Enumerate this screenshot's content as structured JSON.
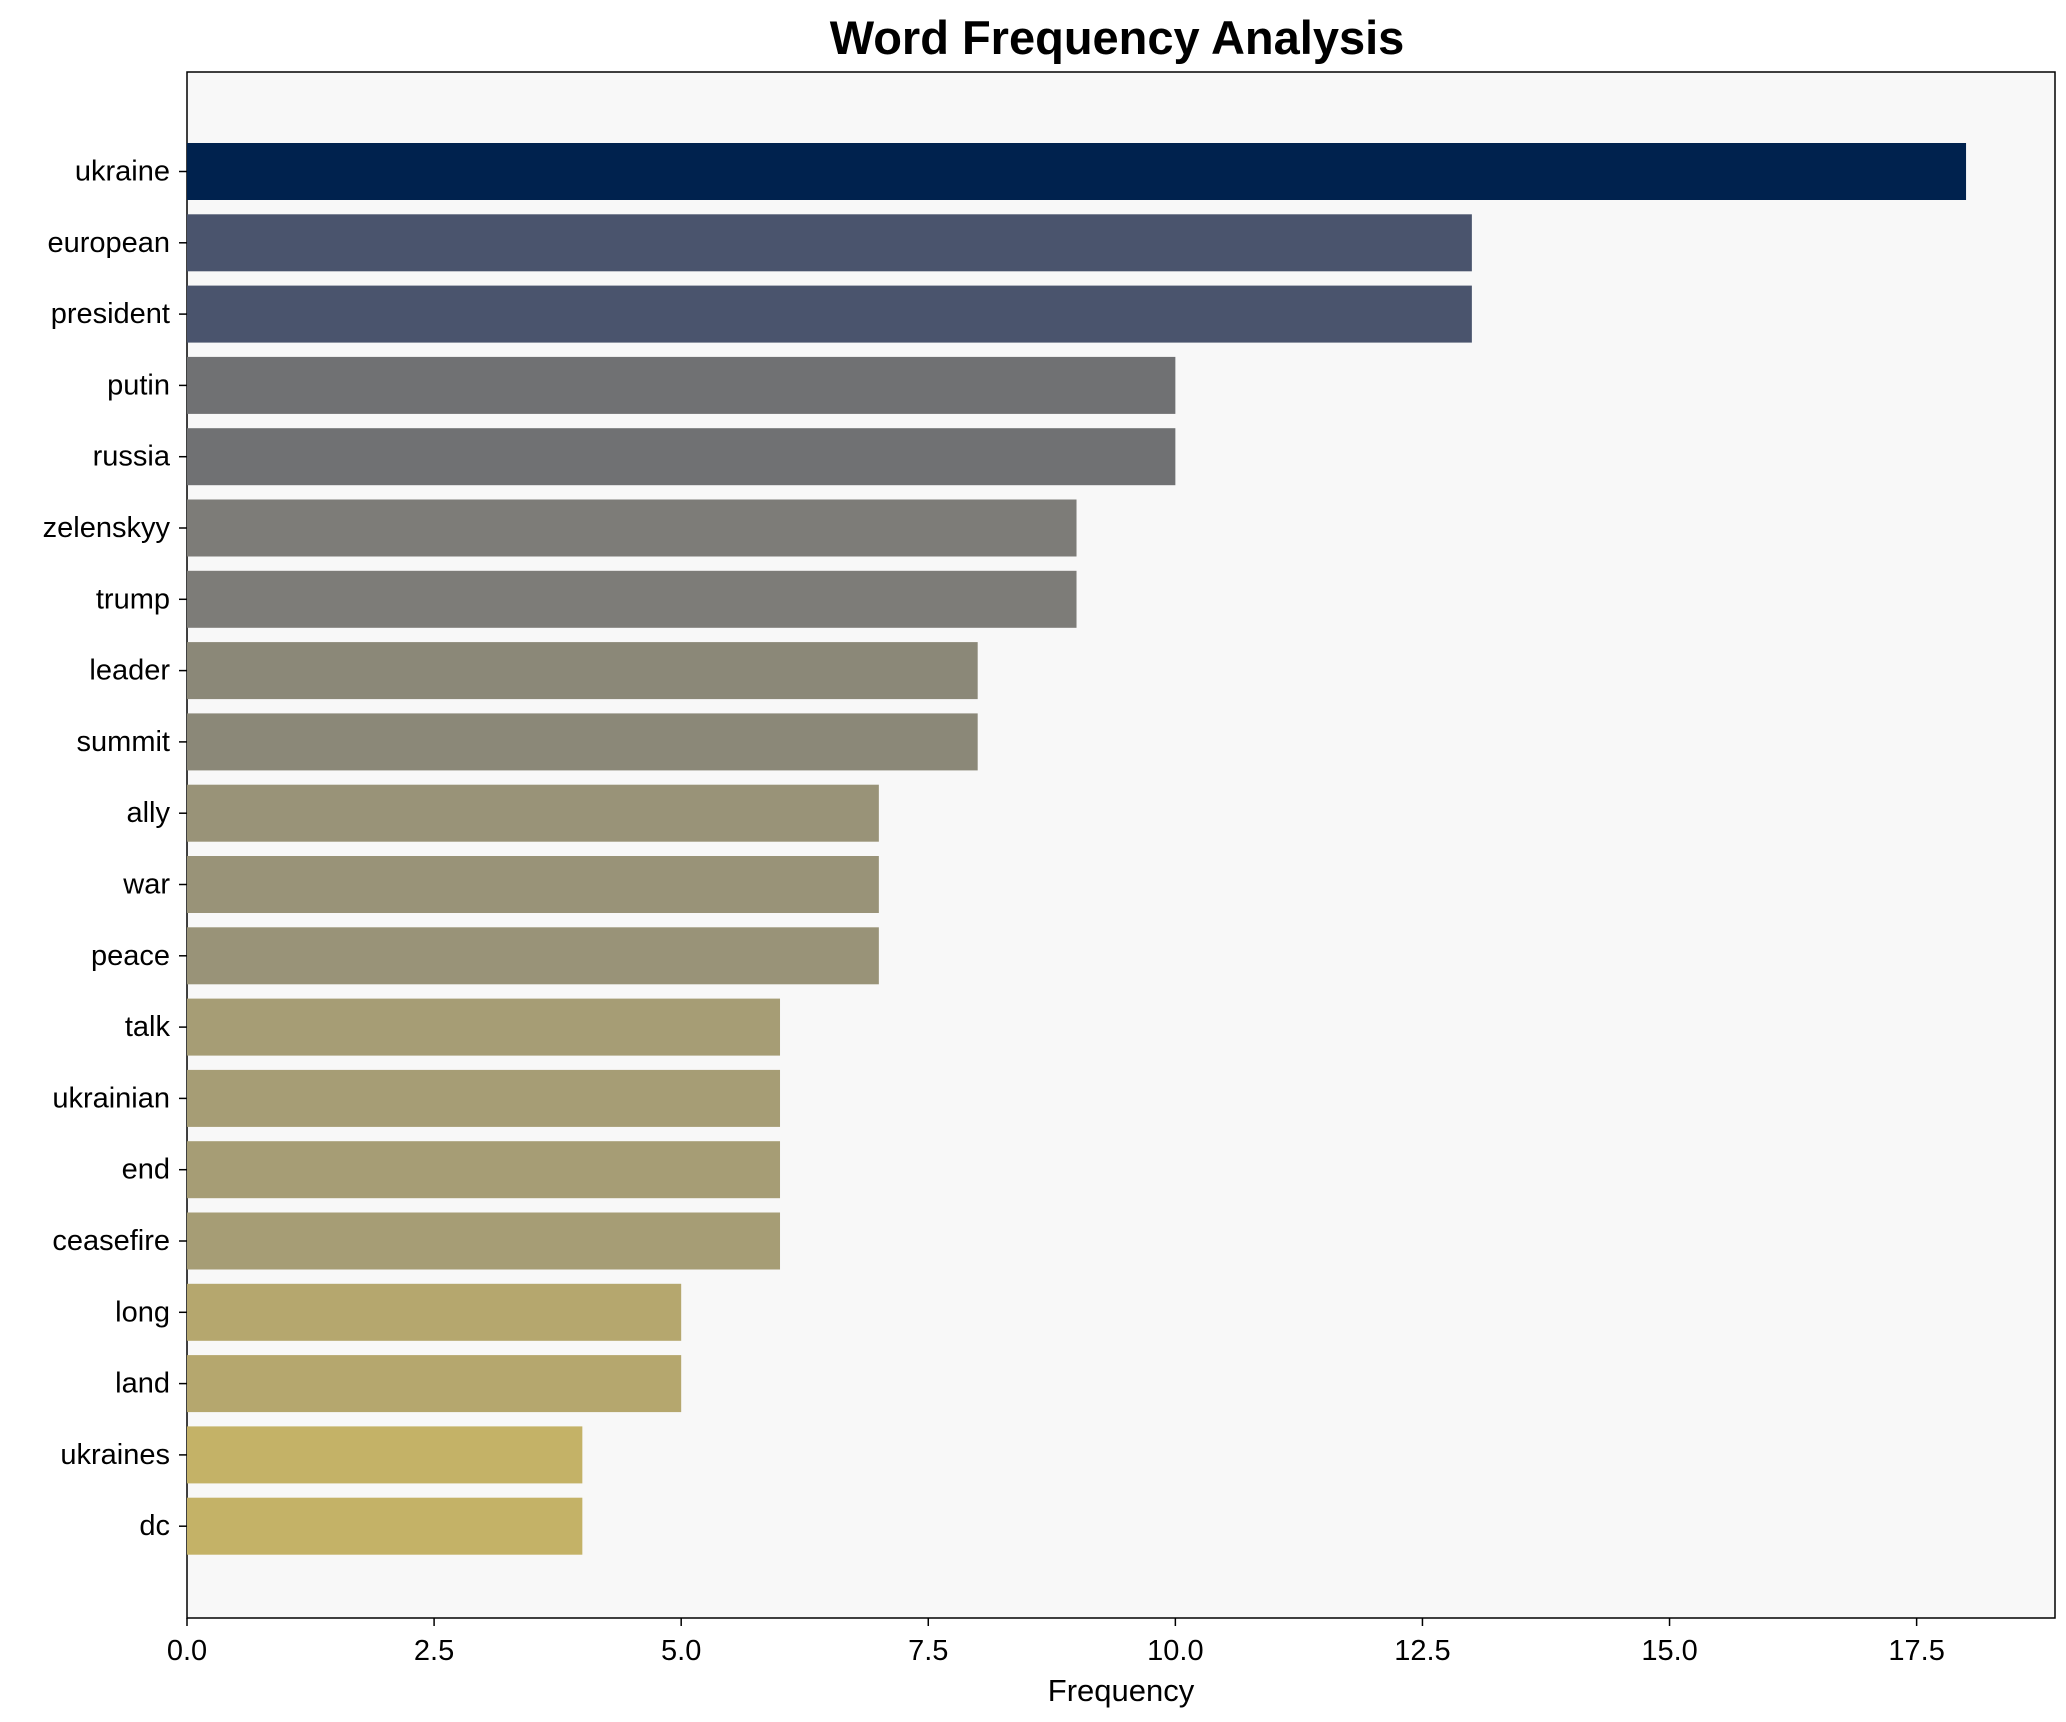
{
  "chart_data": {
    "type": "bar",
    "orientation": "horizontal",
    "title": "Word Frequency Analysis",
    "xlabel": "Frequency",
    "ylabel": "",
    "xlim": [
      0,
      18.9
    ],
    "xticks": [
      0.0,
      2.5,
      5.0,
      7.5,
      10.0,
      12.5,
      15.0,
      17.5
    ],
    "xtick_labels": [
      "0.0",
      "2.5",
      "5.0",
      "7.5",
      "10.0",
      "12.5",
      "15.0",
      "17.5"
    ],
    "grid": false,
    "categories": [
      "ukraine",
      "european",
      "president",
      "putin",
      "russia",
      "zelenskyy",
      "trump",
      "leader",
      "summit",
      "ally",
      "war",
      "peace",
      "talk",
      "ukrainian",
      "end",
      "ceasefire",
      "long",
      "land",
      "ukraines",
      "dc"
    ],
    "values": [
      18,
      13,
      13,
      10,
      10,
      9,
      9,
      8,
      8,
      7,
      7,
      7,
      6,
      6,
      6,
      6,
      5,
      5,
      4,
      4
    ],
    "colors": [
      "#00224e",
      "#4a546d",
      "#4a546d",
      "#707173",
      "#707173",
      "#7d7c78",
      "#7d7c78",
      "#8b8878",
      "#8b8878",
      "#999378",
      "#999378",
      "#999378",
      "#a69d75",
      "#a69d75",
      "#a69d75",
      "#a69d75",
      "#b5a76e",
      "#b5a76e",
      "#c4b267",
      "#c4b267"
    ],
    "plot_background": "#f8f8f8"
  }
}
